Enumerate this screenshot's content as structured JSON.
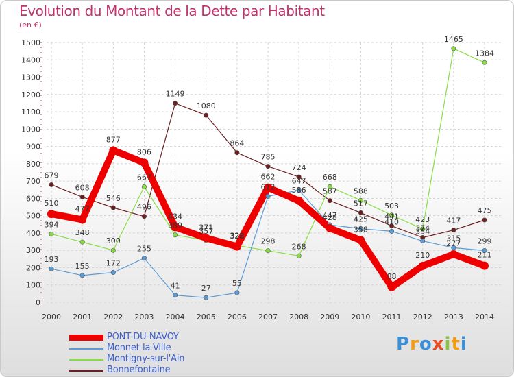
{
  "header": {
    "title": "Evolution du Montant de la Dette par Habitant",
    "unit": "(en €)"
  },
  "logo": {
    "text": "Proxiti",
    "colors": [
      "#3a8fd6",
      "#f39c12",
      "#3a8fd6",
      "#e84c1f",
      "#8bc34a",
      "#f39c12",
      "#3a8fd6"
    ]
  },
  "chart_data": {
    "type": "line",
    "title": "Evolution du Montant de la Dette par Habitant",
    "ylabel": "(en €)",
    "xlabel": "",
    "x": [
      "2000",
      "2001",
      "2002",
      "2003",
      "2004",
      "2005",
      "2006",
      "2007",
      "2008",
      "2009",
      "2010",
      "2011",
      "2012",
      "2013",
      "2014"
    ],
    "ylim": [
      0,
      1500
    ],
    "yticks": [
      0,
      100,
      200,
      300,
      400,
      500,
      600,
      700,
      800,
      900,
      1000,
      1100,
      1200,
      1300,
      1400,
      1500
    ],
    "grid": true,
    "legend_position": "bottom-left",
    "series": [
      {
        "name": "PONT-DU-NAVOY",
        "color": "#ee0000",
        "values": [
          510,
          477,
          877,
          806,
          434,
          371,
          322,
          662,
          586,
          428,
          358,
          88,
          210,
          277,
          211
        ]
      },
      {
        "name": "Monnet-la-Ville",
        "color": "#5b9bd5",
        "values": [
          193,
          155,
          172,
          255,
          41,
          27,
          55,
          612,
          647,
          447,
          425,
          410,
          354,
          315,
          299
        ]
      },
      {
        "name": "Montigny-sur-l'Ain",
        "color": "#88dd44",
        "values": [
          394,
          348,
          300,
          667,
          389,
          357,
          328,
          298,
          268,
          668,
          588,
          503,
          423,
          1465,
          1384
        ]
      },
      {
        "name": "Bonnefontaine",
        "color": "#6b1f1f",
        "values": [
          679,
          608,
          546,
          496,
          1149,
          1080,
          864,
          785,
          724,
          587,
          517,
          441,
          374,
          417,
          475
        ]
      }
    ]
  }
}
